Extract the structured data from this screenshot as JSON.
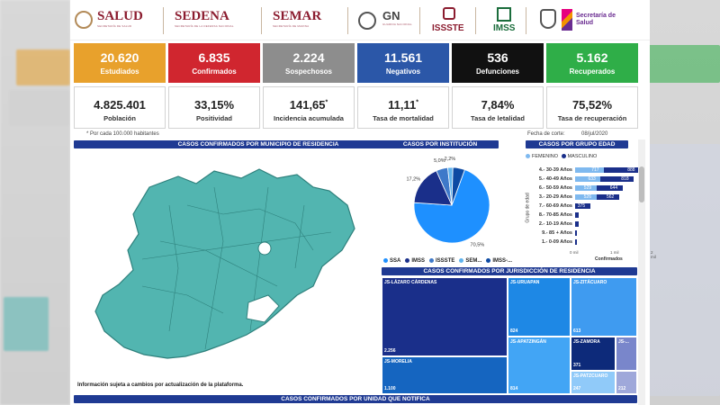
{
  "logos": {
    "salud": "SALUD",
    "sedena": "SEDENA",
    "semar": "SEMAR",
    "gn": "GN",
    "issste": "ISSSTE",
    "imss": "IMSS",
    "secretaria": "Secretaría de Salud"
  },
  "kpis": [
    {
      "value": "20.620",
      "label": "Estudiados",
      "color": "#e8a12c"
    },
    {
      "value": "6.835",
      "label": "Confirmados",
      "color": "#d0262f"
    },
    {
      "value": "2.224",
      "label": "Sospechosos",
      "color": "#8d8d8d"
    },
    {
      "value": "11.561",
      "label": "Negativos",
      "color": "#2b57a8"
    },
    {
      "value": "536",
      "label": "Defunciones",
      "color": "#111111"
    },
    {
      "value": "5.162",
      "label": "Recuperados",
      "color": "#2fae48"
    }
  ],
  "stats": [
    {
      "value": "4.825.401",
      "label": "Población"
    },
    {
      "value": "33,15%",
      "label": "Positividad"
    },
    {
      "value": "141,65",
      "label": "Incidencia acumulada",
      "mark": "*"
    },
    {
      "value": "11,11",
      "label": "Tasa de mortalidad",
      "mark": "*"
    },
    {
      "value": "7,84%",
      "label": "Tasa de letalidad"
    },
    {
      "value": "75,52%",
      "label": "Tasa de recuperación"
    }
  ],
  "notes": {
    "per100k": "* Por cada 100.000 habitantes",
    "corte": "Fecha de corte:",
    "fecha": "08/jul/2020",
    "disclaimer": "Información sujeta a cambios por actualización de la plataforma."
  },
  "headers": {
    "municipio": "CASOS CONFIRMADOS POR MUNICIPIO DE RESIDENCIA",
    "institucion": "CASOS POR INSTITUCIÓN",
    "edad": "CASOS POR GRUPO EDAD",
    "jurisdiccion": "CASOS CONFIRMADOS POR JURISDICCIÓN DE RESIDENCIA",
    "unidad": "CASOS CONFIRMADOS POR UNIDAD QUE NOTIFICA"
  },
  "institucion": {
    "slices": [
      {
        "label": "SSA",
        "value": 70.5,
        "text": "70,5%",
        "color": "#1e90ff"
      },
      {
        "label": "IMSS",
        "value": 17.2,
        "text": "17,2%",
        "color": "#1a2f8a"
      },
      {
        "label": "ISSSTE",
        "value": 5.0,
        "text": "5,0%",
        "color": "#3e79c9"
      },
      {
        "label": "SEM...",
        "value": 2.2,
        "text": "2,2%",
        "color": "#5fb3ee"
      },
      {
        "label": "IMSS-...",
        "value": 5.1,
        "text": "",
        "color": "#0d4aa3"
      }
    ],
    "legend": [
      "SSA",
      "IMSS",
      "ISSSTE",
      "SEM...",
      "IMSS-..."
    ]
  },
  "edad": {
    "legend_f": "FEMENINO",
    "legend_m": "MASCULINO",
    "ylabel": "Grupo de edad",
    "xlabel": "Confirmados",
    "x_ticks": [
      "0 mil",
      "1 mil",
      "2 mil"
    ],
    "groups": [
      {
        "label": "4.- 30-39 Años",
        "f": 717,
        "m": 888
      },
      {
        "label": "5.- 40-49 Años",
        "f": 633,
        "m": 818
      },
      {
        "label": "6.- 50-59 Años",
        "f": 529,
        "m": 644
      },
      {
        "label": "3.- 20-29 Años",
        "f": 526,
        "m": 562
      },
      {
        "label": "7.- 60-69 Años",
        "f": 0,
        "m": 375
      },
      {
        "label": "8.- 70-85 Años",
        "f": 0,
        "m": 0
      },
      {
        "label": "2.- 10-19 Años",
        "f": 0,
        "m": 0
      },
      {
        "label": "9.- 85 + Años",
        "f": 0,
        "m": 0
      },
      {
        "label": "1.- 0-09 Años",
        "f": 0,
        "m": 0
      }
    ]
  },
  "chart_data": {
    "type": "bar",
    "title": "CASOS POR GRUPO EDAD",
    "categories": [
      "4.- 30-39 Años",
      "5.- 40-49 Años",
      "6.- 50-59 Años",
      "3.- 20-29 Años",
      "7.- 60-69 Años",
      "8.- 70-85 Años",
      "2.- 10-19 Años",
      "9.- 85 + Años",
      "1.- 0-09 Años"
    ],
    "series": [
      {
        "name": "FEMENINO",
        "values": [
          717,
          633,
          529,
          526,
          null,
          null,
          null,
          null,
          null
        ]
      },
      {
        "name": "MASCULINO",
        "values": [
          888,
          818,
          644,
          562,
          375,
          null,
          null,
          null,
          null
        ]
      }
    ],
    "xlabel": "Confirmados",
    "ylabel": "Grupo de edad"
  },
  "jurisdicciones": [
    {
      "name": "JS-LÁZARO CÁRDENAS",
      "value": "2.256"
    },
    {
      "name": "JS-MORELIA",
      "value": "1.100"
    },
    {
      "name": "JS-URUAPAN",
      "value": "824"
    },
    {
      "name": "JS-APATZINGÁN",
      "value": "814"
    },
    {
      "name": "JS-ZITÁCUARO",
      "value": "613"
    },
    {
      "name": "JS-ZAMORA",
      "value": "371"
    },
    {
      "name": "JS-...",
      "value": ""
    },
    {
      "name": "JS-PATZCUARO",
      "value": "247"
    },
    {
      "name": "",
      "value": "212"
    }
  ]
}
